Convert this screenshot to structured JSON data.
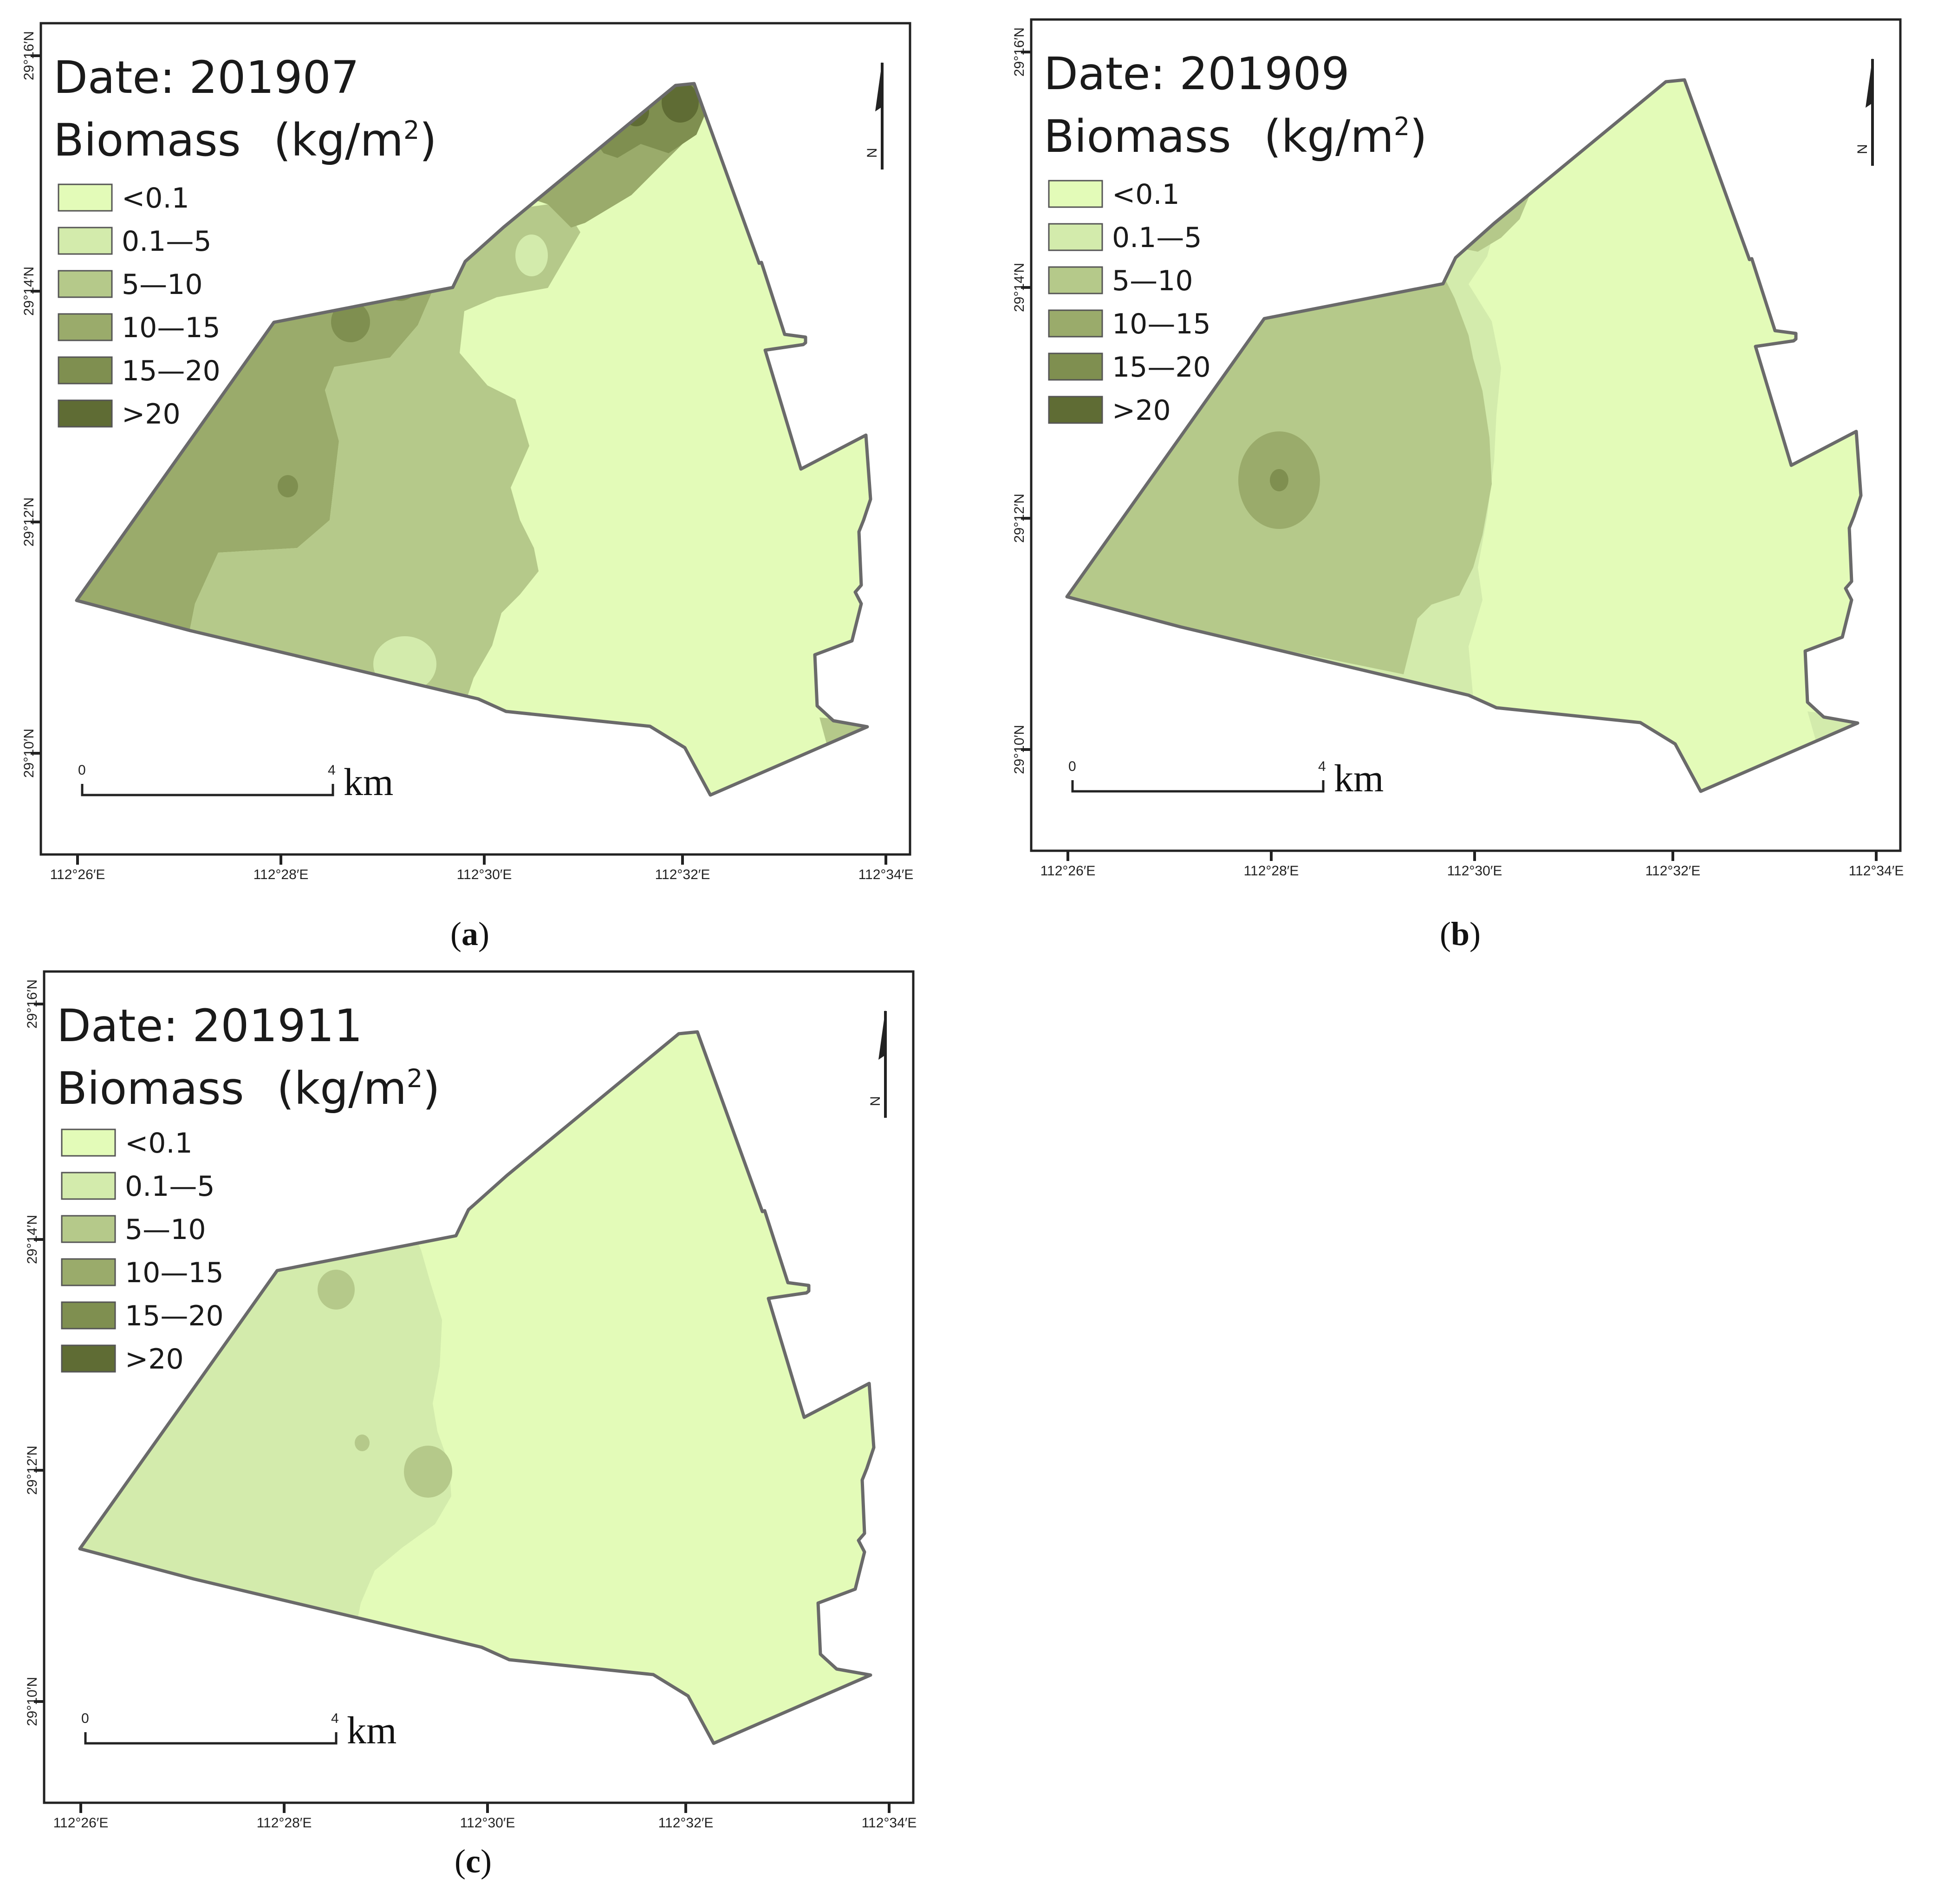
{
  "colors": {
    "class_fill": [
      "#e3fbb8",
      "#d3ebac",
      "#b5c98a",
      "#9aab6b",
      "#7f8f50",
      "#5f6c34"
    ],
    "boundary_stroke": "#6a6a6a"
  },
  "legend": {
    "classes": [
      "<0.1",
      "0.1—5",
      "5—10",
      "10—15",
      "15—20",
      ">20"
    ]
  },
  "axes": {
    "x_ticks": [
      "112°26′E",
      "112°28′E",
      "112°30′E",
      "112°32′E",
      "112°34′E"
    ],
    "y_ticks": [
      "29°16′N",
      "29°14′N",
      "29°12′N",
      "29°10′N"
    ]
  },
  "scale_bar": {
    "start": "0",
    "end": "4",
    "unit": "km"
  },
  "north_label": "N",
  "panels": [
    {
      "id": "a",
      "date_text": "Date: 201907",
      "biomass_text": "Biomass",
      "unit_prefix": "(kg/m",
      "unit_sup": "2",
      "unit_suffix": ")",
      "caption_letter": "a",
      "base_class": 0,
      "zones": [
        {
          "shape": "west-band",
          "class": 3
        },
        {
          "shape": "mid-band",
          "class": 2
        },
        {
          "shape": "north-band",
          "class": 3
        },
        {
          "shape": "ne-corner",
          "class": 4
        },
        {
          "shape": "spot-ne-1",
          "class": 5
        },
        {
          "shape": "spot-ne-2",
          "class": 5
        },
        {
          "shape": "spot-mid-1",
          "class": 4
        },
        {
          "shape": "spot-mid-2",
          "class": 4
        },
        {
          "shape": "spot-west",
          "class": 4
        },
        {
          "shape": "spot-south",
          "class": 1
        },
        {
          "shape": "spot-north",
          "class": 1
        },
        {
          "shape": "se-tip",
          "class": 2
        }
      ]
    },
    {
      "id": "b",
      "date_text": "Date: 201909",
      "biomass_text": "Biomass",
      "unit_prefix": "(kg/m",
      "unit_sup": "2",
      "unit_suffix": ")",
      "caption_letter": "b",
      "base_class": 0,
      "zones": [
        {
          "shape": "west-halo",
          "class": 1
        },
        {
          "shape": "west-region",
          "class": 2
        },
        {
          "shape": "north-lobe",
          "class": 2
        },
        {
          "shape": "north-spot",
          "class": 3
        },
        {
          "shape": "ring-outer",
          "class": 3
        },
        {
          "shape": "ring-inner",
          "class": 4
        },
        {
          "shape": "se-tip",
          "class": 1
        }
      ]
    },
    {
      "id": "c",
      "date_text": "Date: 201911",
      "biomass_text": "Biomass",
      "unit_prefix": "(kg/m",
      "unit_sup": "2",
      "unit_suffix": ")",
      "caption_letter": "c",
      "base_class": 0,
      "zones": [
        {
          "shape": "west-region",
          "class": 1
        },
        {
          "shape": "spot-1",
          "class": 2
        },
        {
          "shape": "spot-2",
          "class": 2
        },
        {
          "shape": "spot-3",
          "class": 2
        }
      ]
    }
  ]
}
